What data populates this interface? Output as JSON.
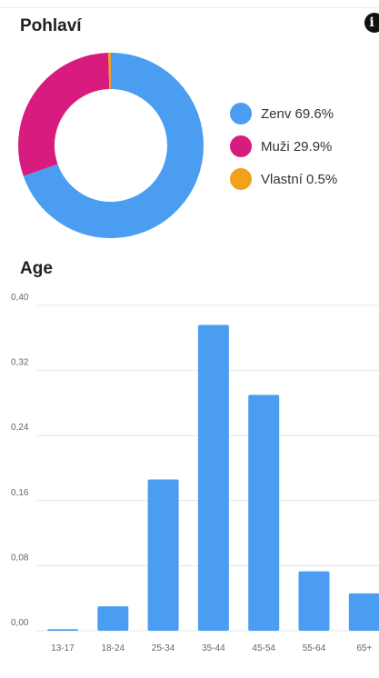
{
  "gender_section": {
    "title": "Pohlaví",
    "info_icon": "info-icon",
    "chart_data": {
      "type": "pie",
      "style": "donut",
      "slices": [
        {
          "label": "Zenv",
          "value": 69.6,
          "display": "Zenv 69.6%",
          "color": "#4a9df0"
        },
        {
          "label": "Muži",
          "value": 29.9,
          "display": "Muži 29.9%",
          "color": "#d81b7e"
        },
        {
          "label": "Vlastní",
          "value": 0.5,
          "display": "Vlastní 0.5%",
          "color": "#f0a21a"
        }
      ],
      "legend_position": "right"
    }
  },
  "age_section": {
    "title": "Age",
    "chart_data": {
      "type": "bar",
      "categories": [
        "13-17",
        "18-24",
        "25-34",
        "35-44",
        "45-54",
        "55-64",
        "65+"
      ],
      "values": [
        0.002,
        0.03,
        0.186,
        0.376,
        0.29,
        0.073,
        0.046
      ],
      "ylim": [
        0,
        0.4
      ],
      "yticks": [
        "0,00",
        "0,08",
        "0,16",
        "0,24",
        "0,32",
        "0,40"
      ],
      "ytick_values": [
        0,
        0.08,
        0.16,
        0.24,
        0.32,
        0.4
      ],
      "grid": true,
      "bar_color": "#4a9df0"
    }
  }
}
